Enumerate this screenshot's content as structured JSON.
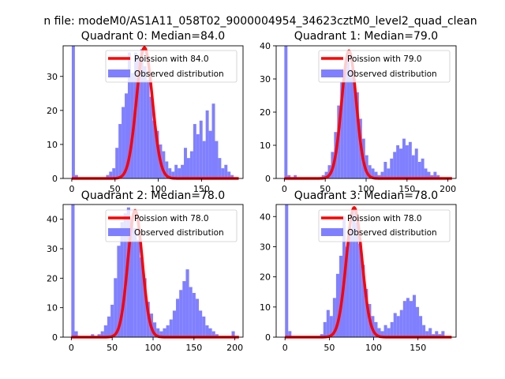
{
  "figure": {
    "suptitle": "n file: modeM0/AS1A11_058T02_9000004954_34623cztM0_level2_quad_clean"
  },
  "colors": {
    "poisson_line": "#ff0000",
    "histogram": "#8080ff",
    "axes": "#000000",
    "background": "#ffffff"
  },
  "chart_data": [
    {
      "type": "bar",
      "title": "Quadrant 0: Median=84.0",
      "xlim": [
        -10,
        198
      ],
      "ylim": [
        0,
        39
      ],
      "xticks": [
        0,
        50,
        100,
        150
      ],
      "yticks": [
        0,
        10,
        20,
        30
      ],
      "legend_position": "top-right",
      "legend": [
        "Poission with 84.0",
        "Observed distribution"
      ],
      "median": 84.0,
      "poisson_peak": 38.5,
      "poisson_sigma": 9.2,
      "bin_width": 3.6,
      "series": [
        {
          "name": "Observed distribution",
          "bins": [
            {
              "x": 0,
              "value": 39
            },
            {
              "x": 3.6,
              "value": 1
            },
            {
              "x": 39.6,
              "value": 1
            },
            {
              "x": 43.2,
              "value": 2
            },
            {
              "x": 46.8,
              "value": 3
            },
            {
              "x": 50.4,
              "value": 9
            },
            {
              "x": 54,
              "value": 16
            },
            {
              "x": 57.6,
              "value": 21
            },
            {
              "x": 61.2,
              "value": 25
            },
            {
              "x": 64.8,
              "value": 37
            },
            {
              "x": 68.4,
              "value": 31
            },
            {
              "x": 72,
              "value": 37
            },
            {
              "x": 75.6,
              "value": 35
            },
            {
              "x": 79.2,
              "value": 38
            },
            {
              "x": 82.8,
              "value": 33
            },
            {
              "x": 86.4,
              "value": 29
            },
            {
              "x": 90,
              "value": 24
            },
            {
              "x": 93.6,
              "value": 17
            },
            {
              "x": 97.2,
              "value": 14
            },
            {
              "x": 100.8,
              "value": 10
            },
            {
              "x": 104.4,
              "value": 8
            },
            {
              "x": 108,
              "value": 5
            },
            {
              "x": 111.6,
              "value": 3
            },
            {
              "x": 115.2,
              "value": 2
            },
            {
              "x": 118.8,
              "value": 4
            },
            {
              "x": 122.4,
              "value": 3
            },
            {
              "x": 126,
              "value": 4
            },
            {
              "x": 129.6,
              "value": 9
            },
            {
              "x": 133.2,
              "value": 6
            },
            {
              "x": 136.8,
              "value": 8
            },
            {
              "x": 140.4,
              "value": 16
            },
            {
              "x": 144,
              "value": 13
            },
            {
              "x": 147.6,
              "value": 17
            },
            {
              "x": 151.2,
              "value": 11
            },
            {
              "x": 154.8,
              "value": 20
            },
            {
              "x": 158.4,
              "value": 14
            },
            {
              "x": 162,
              "value": 22
            },
            {
              "x": 165.6,
              "value": 11
            },
            {
              "x": 169.2,
              "value": 6
            },
            {
              "x": 172.8,
              "value": 3
            },
            {
              "x": 176.4,
              "value": 4
            },
            {
              "x": 180,
              "value": 2
            },
            {
              "x": 183.6,
              "value": 1
            }
          ]
        },
        {
          "name": "Poission with 84.0",
          "kind": "poisson",
          "mean": 84.0
        }
      ]
    },
    {
      "type": "bar",
      "title": "Quadrant 1: Median=79.0",
      "xlim": [
        -10,
        210
      ],
      "ylim": [
        0,
        40
      ],
      "xticks": [
        0,
        50,
        100,
        150,
        200
      ],
      "yticks": [
        0,
        10,
        20,
        30,
        40
      ],
      "legend_position": "top-right",
      "legend": [
        "Poission with 79.0",
        "Observed distribution"
      ],
      "median": 79.0,
      "poisson_peak": 38.5,
      "poisson_sigma": 8.9,
      "bin_width": 3.8,
      "series": [
        {
          "name": "Observed distribution",
          "bins": [
            {
              "x": 0,
              "value": 40
            },
            {
              "x": 3.8,
              "value": 1
            },
            {
              "x": 11.4,
              "value": 1
            },
            {
              "x": 45.6,
              "value": 1
            },
            {
              "x": 49.4,
              "value": 2
            },
            {
              "x": 53.2,
              "value": 4
            },
            {
              "x": 57,
              "value": 8
            },
            {
              "x": 60.8,
              "value": 14
            },
            {
              "x": 64.6,
              "value": 22
            },
            {
              "x": 68.4,
              "value": 29
            },
            {
              "x": 72.2,
              "value": 32
            },
            {
              "x": 76,
              "value": 37
            },
            {
              "x": 79.8,
              "value": 33
            },
            {
              "x": 83.6,
              "value": 30
            },
            {
              "x": 87.4,
              "value": 26
            },
            {
              "x": 91.2,
              "value": 18
            },
            {
              "x": 95,
              "value": 12
            },
            {
              "x": 98.8,
              "value": 7
            },
            {
              "x": 102.6,
              "value": 4
            },
            {
              "x": 106.4,
              "value": 3
            },
            {
              "x": 110.2,
              "value": 2
            },
            {
              "x": 114,
              "value": 1
            },
            {
              "x": 117.8,
              "value": 2
            },
            {
              "x": 121.6,
              "value": 5
            },
            {
              "x": 125.4,
              "value": 3
            },
            {
              "x": 129.2,
              "value": 6
            },
            {
              "x": 133,
              "value": 8
            },
            {
              "x": 136.8,
              "value": 10
            },
            {
              "x": 140.6,
              "value": 9
            },
            {
              "x": 144.4,
              "value": 12
            },
            {
              "x": 148.2,
              "value": 10
            },
            {
              "x": 152,
              "value": 11
            },
            {
              "x": 155.8,
              "value": 7
            },
            {
              "x": 159.6,
              "value": 9
            },
            {
              "x": 163.4,
              "value": 5
            },
            {
              "x": 167.2,
              "value": 6
            },
            {
              "x": 171,
              "value": 3
            },
            {
              "x": 174.8,
              "value": 2
            },
            {
              "x": 178.6,
              "value": 1
            },
            {
              "x": 182.4,
              "value": 2
            },
            {
              "x": 186.2,
              "value": 1
            }
          ]
        },
        {
          "name": "Poission with 79.0",
          "kind": "poisson",
          "mean": 79.0
        }
      ]
    },
    {
      "type": "bar",
      "title": "Quadrant 2: Median=78.0",
      "xlim": [
        -10,
        210
      ],
      "ylim": [
        0,
        45
      ],
      "xticks": [
        0,
        50,
        100,
        150,
        200
      ],
      "yticks": [
        0,
        10,
        20,
        30,
        40
      ],
      "legend_position": "top-right",
      "legend": [
        "Poission with 78.0",
        "Observed distribution"
      ],
      "median": 78.0,
      "poisson_peak": 43,
      "poisson_sigma": 8.8,
      "bin_width": 4,
      "series": [
        {
          "name": "Observed distribution",
          "bins": [
            {
              "x": 0,
              "value": 45
            },
            {
              "x": 4,
              "value": 2
            },
            {
              "x": 24,
              "value": 1
            },
            {
              "x": 32,
              "value": 1
            },
            {
              "x": 36,
              "value": 2
            },
            {
              "x": 40,
              "value": 4
            },
            {
              "x": 44,
              "value": 7
            },
            {
              "x": 48,
              "value": 11
            },
            {
              "x": 52,
              "value": 20
            },
            {
              "x": 56,
              "value": 31
            },
            {
              "x": 60,
              "value": 39
            },
            {
              "x": 64,
              "value": 42
            },
            {
              "x": 68,
              "value": 44
            },
            {
              "x": 72,
              "value": 40
            },
            {
              "x": 76,
              "value": 37
            },
            {
              "x": 80,
              "value": 33
            },
            {
              "x": 84,
              "value": 27
            },
            {
              "x": 88,
              "value": 20
            },
            {
              "x": 92,
              "value": 12
            },
            {
              "x": 96,
              "value": 8
            },
            {
              "x": 100,
              "value": 5
            },
            {
              "x": 104,
              "value": 3
            },
            {
              "x": 108,
              "value": 2
            },
            {
              "x": 112,
              "value": 3
            },
            {
              "x": 116,
              "value": 4
            },
            {
              "x": 120,
              "value": 6
            },
            {
              "x": 124,
              "value": 9
            },
            {
              "x": 128,
              "value": 13
            },
            {
              "x": 132,
              "value": 16
            },
            {
              "x": 136,
              "value": 19
            },
            {
              "x": 140,
              "value": 23
            },
            {
              "x": 144,
              "value": 17
            },
            {
              "x": 148,
              "value": 15
            },
            {
              "x": 152,
              "value": 13
            },
            {
              "x": 156,
              "value": 9
            },
            {
              "x": 160,
              "value": 7
            },
            {
              "x": 164,
              "value": 4
            },
            {
              "x": 168,
              "value": 3
            },
            {
              "x": 172,
              "value": 2
            },
            {
              "x": 176,
              "value": 1
            },
            {
              "x": 196,
              "value": 2
            }
          ]
        },
        {
          "name": "Poission with 78.0",
          "kind": "poisson",
          "mean": 78.0
        }
      ]
    },
    {
      "type": "bar",
      "title": "Quadrant 3: Median=78.0",
      "xlim": [
        -10,
        193
      ],
      "ylim": [
        0,
        44
      ],
      "xticks": [
        0,
        50,
        100,
        150
      ],
      "yticks": [
        0,
        10,
        20,
        30,
        40
      ],
      "legend_position": "top-right",
      "legend": [
        "Poission with 78.0",
        "Observed distribution"
      ],
      "median": 78.0,
      "poisson_peak": 43,
      "poisson_sigma": 8.8,
      "bin_width": 3.6,
      "series": [
        {
          "name": "Observed distribution",
          "bins": [
            {
              "x": 0,
              "value": 44
            },
            {
              "x": 3.6,
              "value": 2
            },
            {
              "x": 39.6,
              "value": 1
            },
            {
              "x": 43.2,
              "value": 5
            },
            {
              "x": 46.8,
              "value": 9
            },
            {
              "x": 50.4,
              "value": 7
            },
            {
              "x": 54,
              "value": 13
            },
            {
              "x": 57.6,
              "value": 21
            },
            {
              "x": 61.2,
              "value": 27
            },
            {
              "x": 64.8,
              "value": 40
            },
            {
              "x": 68.4,
              "value": 30
            },
            {
              "x": 72,
              "value": 36
            },
            {
              "x": 75.6,
              "value": 42
            },
            {
              "x": 79.2,
              "value": 38
            },
            {
              "x": 82.8,
              "value": 31
            },
            {
              "x": 86.4,
              "value": 24
            },
            {
              "x": 90,
              "value": 16
            },
            {
              "x": 93.6,
              "value": 11
            },
            {
              "x": 97.2,
              "value": 7
            },
            {
              "x": 100.8,
              "value": 5
            },
            {
              "x": 104.4,
              "value": 3
            },
            {
              "x": 108,
              "value": 2
            },
            {
              "x": 111.6,
              "value": 4
            },
            {
              "x": 115.2,
              "value": 3
            },
            {
              "x": 118.8,
              "value": 5
            },
            {
              "x": 122.4,
              "value": 8
            },
            {
              "x": 126,
              "value": 7
            },
            {
              "x": 129.6,
              "value": 9
            },
            {
              "x": 133.2,
              "value": 12
            },
            {
              "x": 136.8,
              "value": 13
            },
            {
              "x": 140.4,
              "value": 12
            },
            {
              "x": 144,
              "value": 14
            },
            {
              "x": 147.6,
              "value": 10
            },
            {
              "x": 151.2,
              "value": 7
            },
            {
              "x": 154.8,
              "value": 4
            },
            {
              "x": 158.4,
              "value": 2
            },
            {
              "x": 162,
              "value": 3
            },
            {
              "x": 165.6,
              "value": 1
            },
            {
              "x": 169.2,
              "value": 2
            },
            {
              "x": 172.8,
              "value": 1
            },
            {
              "x": 176.4,
              "value": 2
            }
          ]
        },
        {
          "name": "Poission with 78.0",
          "kind": "poisson",
          "mean": 78.0
        }
      ]
    }
  ]
}
